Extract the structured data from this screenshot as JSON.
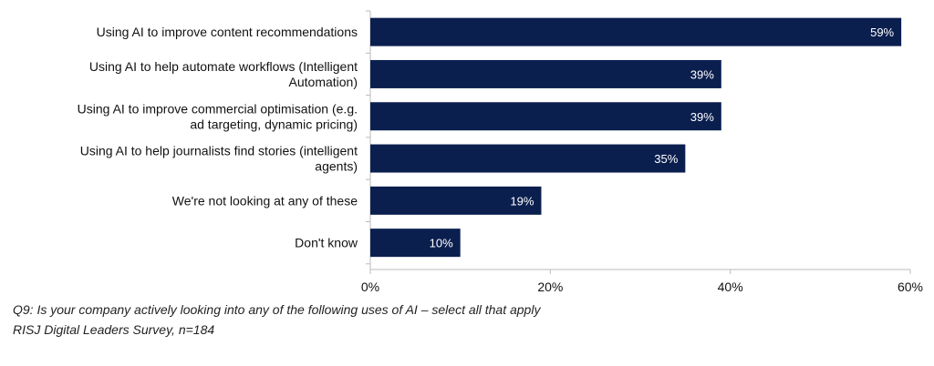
{
  "chart_data": {
    "type": "bar",
    "orientation": "horizontal",
    "categories": [
      [
        "Using AI to improve content recommendations"
      ],
      [
        "Using AI to help automate workflows (Intelligent",
        "Automation)"
      ],
      [
        "Using AI to improve commercial optimisation (e.g.",
        "ad targeting, dynamic pricing)"
      ],
      [
        "Using AI to help journalists find stories (intelligent",
        "agents)"
      ],
      [
        "We're not looking at any of these"
      ],
      [
        "Don't know"
      ]
    ],
    "values": [
      59,
      39,
      39,
      35,
      19,
      10
    ],
    "value_labels": [
      "59%",
      "39%",
      "39%",
      "35%",
      "19%",
      "10%"
    ],
    "xlim": [
      0,
      60
    ],
    "xticks": [
      0,
      20,
      40,
      60
    ],
    "xtick_labels": [
      "0%",
      "20%",
      "40%",
      "60%"
    ],
    "bar_color": "#0b1f4f",
    "grid": false,
    "legend": "none"
  },
  "caption": {
    "question": "Q9: Is your company actively looking into any of the following uses of AI – select all that apply",
    "source": "RISJ Digital Leaders Survey, n=184"
  }
}
